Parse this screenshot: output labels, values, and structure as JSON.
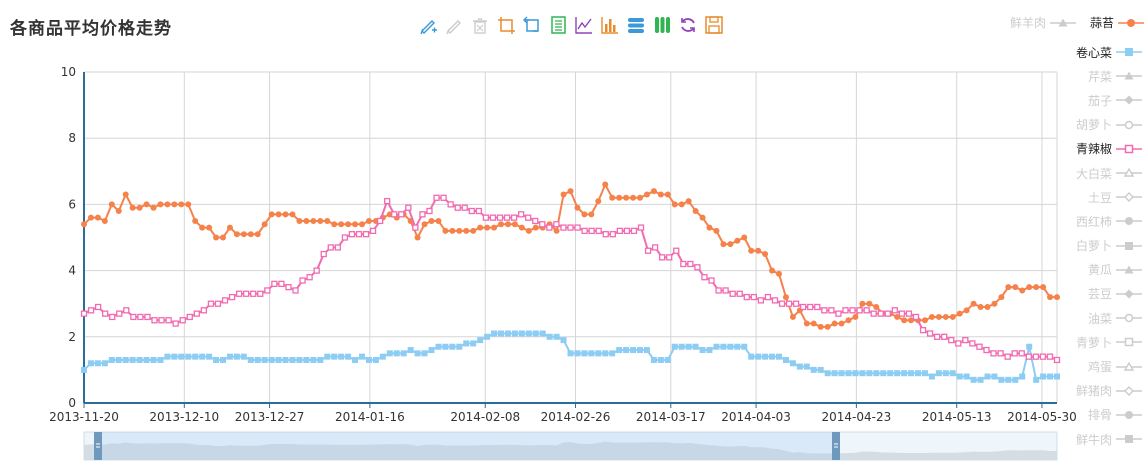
{
  "title": "各商品平均价格走势",
  "toolbar": {
    "tools": [
      {
        "name": "mark-icon",
        "color": "#3a9ad9"
      },
      {
        "name": "mark-undo-icon",
        "color": "#cccccc"
      },
      {
        "name": "mark-clear-icon",
        "color": "#cccccc"
      },
      {
        "name": "data-zoom-icon",
        "color": "#e88b2b"
      },
      {
        "name": "data-zoom-reset-icon",
        "color": "#3a9ad9"
      },
      {
        "name": "data-view-icon",
        "color": "#2fb552"
      },
      {
        "name": "line-chart-icon",
        "color": "#8f44b5"
      },
      {
        "name": "bar-chart-icon",
        "color": "#e88b2b"
      },
      {
        "name": "stack-icon",
        "color": "#3a9ad9"
      },
      {
        "name": "tiled-icon",
        "color": "#2fb552"
      },
      {
        "name": "restore-icon",
        "color": "#8f44b5"
      },
      {
        "name": "save-image-icon",
        "color": "#e88b2b"
      }
    ]
  },
  "legend_top": [
    {
      "label": "鲜羊肉",
      "active": false,
      "color": "#cccccc",
      "symbol": "triangle"
    },
    {
      "label": "蒜苔",
      "active": true,
      "color": "#f5824b",
      "symbol": "circle"
    }
  ],
  "legend": [
    {
      "label": "卷心菜",
      "active": true,
      "color": "#8dcdf3",
      "symbol": "square"
    },
    {
      "label": "芹菜",
      "active": false,
      "color": "#cccccc",
      "symbol": "triangle"
    },
    {
      "label": "茄子",
      "active": false,
      "color": "#cccccc",
      "symbol": "diamond"
    },
    {
      "label": "胡萝卜",
      "active": false,
      "color": "#cccccc",
      "symbol": "emptyCircle"
    },
    {
      "label": "青辣椒",
      "active": true,
      "color": "#f26ab0",
      "symbol": "emptySquare"
    },
    {
      "label": "大白菜",
      "active": false,
      "color": "#cccccc",
      "symbol": "emptyTriangle"
    },
    {
      "label": "土豆",
      "active": false,
      "color": "#cccccc",
      "symbol": "emptyDiamond"
    },
    {
      "label": "西红柿",
      "active": false,
      "color": "#cccccc",
      "symbol": "circle"
    },
    {
      "label": "白萝卜",
      "active": false,
      "color": "#cccccc",
      "symbol": "square"
    },
    {
      "label": "黄瓜",
      "active": false,
      "color": "#cccccc",
      "symbol": "triangle"
    },
    {
      "label": "芸豆",
      "active": false,
      "color": "#cccccc",
      "symbol": "diamond"
    },
    {
      "label": "油菜",
      "active": false,
      "color": "#cccccc",
      "symbol": "emptyCircle"
    },
    {
      "label": "青萝卜",
      "active": false,
      "color": "#cccccc",
      "symbol": "emptySquare"
    },
    {
      "label": "鸡蛋",
      "active": false,
      "color": "#cccccc",
      "symbol": "emptyTriangle"
    },
    {
      "label": "鲜猪肉",
      "active": false,
      "color": "#cccccc",
      "symbol": "emptyDiamond"
    },
    {
      "label": "排骨",
      "active": false,
      "color": "#cccccc",
      "symbol": "circle"
    },
    {
      "label": "鲜牛肉",
      "active": false,
      "color": "#cccccc",
      "symbol": "square"
    }
  ],
  "chart_data": {
    "type": "line",
    "title": "各商品平均价格走势",
    "x_start": "2013-11-20",
    "x_end": "2014-06-02",
    "xticks": [
      "2013-11-20",
      "2013-12-10",
      "2013-12-27",
      "2014-01-16",
      "2014-02-08",
      "2014-02-26",
      "2014-03-17",
      "2014-04-03",
      "2014-04-23",
      "2014-05-13",
      "2014-05-30"
    ],
    "ylim": [
      0,
      10
    ],
    "yticks": [
      0,
      2,
      4,
      6,
      8,
      10
    ],
    "grid": true,
    "series": [
      {
        "name": "蒜苔",
        "color": "#f5824b",
        "symbol": "circle",
        "values": [
          5.4,
          5.6,
          5.6,
          5.5,
          6.0,
          5.8,
          6.3,
          5.9,
          5.9,
          6.0,
          5.9,
          6.0,
          6.0,
          6.0,
          6.0,
          6.0,
          5.5,
          5.3,
          5.3,
          5.0,
          5.0,
          5.3,
          5.1,
          5.1,
          5.1,
          5.1,
          5.4,
          5.7,
          5.7,
          5.7,
          5.7,
          5.5,
          5.5,
          5.5,
          5.5,
          5.5,
          5.4,
          5.4,
          5.4,
          5.4,
          5.4,
          5.5,
          5.5,
          5.6,
          5.7,
          5.6,
          5.7,
          5.5,
          5.0,
          5.4,
          5.5,
          5.5,
          5.2,
          5.2,
          5.2,
          5.2,
          5.2,
          5.3,
          5.3,
          5.3,
          5.4,
          5.4,
          5.4,
          5.3,
          5.2,
          5.3,
          5.3,
          5.4,
          5.2,
          6.3,
          6.4,
          5.9,
          5.7,
          5.7,
          6.1,
          6.6,
          6.2,
          6.2,
          6.2,
          6.2,
          6.2,
          6.3,
          6.4,
          6.3,
          6.3,
          6.0,
          6.0,
          6.1,
          5.8,
          5.6,
          5.3,
          5.2,
          4.8,
          4.8,
          4.9,
          5.0,
          4.6,
          4.6,
          4.5,
          4.0,
          3.9,
          3.2,
          2.6,
          2.8,
          2.4,
          2.4,
          2.3,
          2.3,
          2.4,
          2.4,
          2.5,
          2.6,
          3.0,
          3.0,
          2.9,
          2.7,
          2.7,
          2.6,
          2.5,
          2.5,
          2.5,
          2.5,
          2.6,
          2.6,
          2.6,
          2.6,
          2.7,
          2.8,
          3.0,
          2.9,
          2.9,
          3.0,
          3.2,
          3.5,
          3.5,
          3.4,
          3.5,
          3.5,
          3.5,
          3.2,
          3.2
        ]
      },
      {
        "name": "卷心菜",
        "color": "#8dcdf3",
        "symbol": "square",
        "values": [
          1.0,
          1.2,
          1.2,
          1.2,
          1.3,
          1.3,
          1.3,
          1.3,
          1.3,
          1.3,
          1.3,
          1.3,
          1.4,
          1.4,
          1.4,
          1.4,
          1.4,
          1.4,
          1.4,
          1.3,
          1.3,
          1.4,
          1.4,
          1.4,
          1.3,
          1.3,
          1.3,
          1.3,
          1.3,
          1.3,
          1.3,
          1.3,
          1.3,
          1.3,
          1.3,
          1.4,
          1.4,
          1.4,
          1.4,
          1.3,
          1.4,
          1.3,
          1.3,
          1.4,
          1.5,
          1.5,
          1.5,
          1.6,
          1.5,
          1.5,
          1.6,
          1.7,
          1.7,
          1.7,
          1.7,
          1.8,
          1.8,
          1.9,
          2.0,
          2.1,
          2.1,
          2.1,
          2.1,
          2.1,
          2.1,
          2.1,
          2.1,
          2.0,
          2.0,
          1.9,
          1.5,
          1.5,
          1.5,
          1.5,
          1.5,
          1.5,
          1.5,
          1.6,
          1.6,
          1.6,
          1.6,
          1.6,
          1.3,
          1.3,
          1.3,
          1.7,
          1.7,
          1.7,
          1.7,
          1.6,
          1.6,
          1.7,
          1.7,
          1.7,
          1.7,
          1.7,
          1.4,
          1.4,
          1.4,
          1.4,
          1.4,
          1.3,
          1.2,
          1.1,
          1.1,
          1.0,
          1.0,
          0.9,
          0.9,
          0.9,
          0.9,
          0.9,
          0.9,
          0.9,
          0.9,
          0.9,
          0.9,
          0.9,
          0.9,
          0.9,
          0.9,
          0.9,
          0.8,
          0.9,
          0.9,
          0.9,
          0.8,
          0.8,
          0.7,
          0.7,
          0.8,
          0.8,
          0.7,
          0.7,
          0.7,
          0.8,
          1.7,
          0.7,
          0.8,
          0.8,
          0.8
        ]
      },
      {
        "name": "青辣椒",
        "color": "#f26ab0",
        "symbol": "emptySquare",
        "values": [
          2.7,
          2.8,
          2.9,
          2.7,
          2.6,
          2.7,
          2.8,
          2.6,
          2.6,
          2.6,
          2.5,
          2.5,
          2.5,
          2.4,
          2.5,
          2.6,
          2.7,
          2.8,
          3.0,
          3.0,
          3.1,
          3.2,
          3.3,
          3.3,
          3.3,
          3.3,
          3.4,
          3.6,
          3.6,
          3.5,
          3.4,
          3.7,
          3.8,
          4.0,
          4.5,
          4.7,
          4.7,
          5.0,
          5.1,
          5.1,
          5.1,
          5.2,
          5.5,
          6.1,
          5.7,
          5.7,
          5.9,
          5.3,
          5.7,
          5.8,
          6.2,
          6.2,
          6.0,
          5.9,
          5.9,
          5.8,
          5.8,
          5.6,
          5.6,
          5.6,
          5.6,
          5.6,
          5.7,
          5.6,
          5.5,
          5.4,
          5.3,
          5.4,
          5.3,
          5.3,
          5.3,
          5.2,
          5.2,
          5.2,
          5.1,
          5.1,
          5.2,
          5.2,
          5.2,
          5.3,
          4.6,
          4.7,
          4.4,
          4.4,
          4.6,
          4.2,
          4.2,
          4.1,
          3.8,
          3.7,
          3.4,
          3.4,
          3.3,
          3.3,
          3.2,
          3.2,
          3.1,
          3.2,
          3.1,
          3.0,
          3.0,
          3.0,
          2.9,
          2.9,
          2.9,
          2.8,
          2.8,
          2.7,
          2.8,
          2.8,
          2.8,
          2.8,
          2.7,
          2.7,
          2.7,
          2.8,
          2.7,
          2.7,
          2.6,
          2.2,
          2.1,
          2.0,
          2.0,
          1.9,
          1.8,
          1.9,
          1.8,
          1.7,
          1.6,
          1.5,
          1.5,
          1.4,
          1.5,
          1.5,
          1.4,
          1.4,
          1.4,
          1.4,
          1.3
        ]
      }
    ]
  }
}
